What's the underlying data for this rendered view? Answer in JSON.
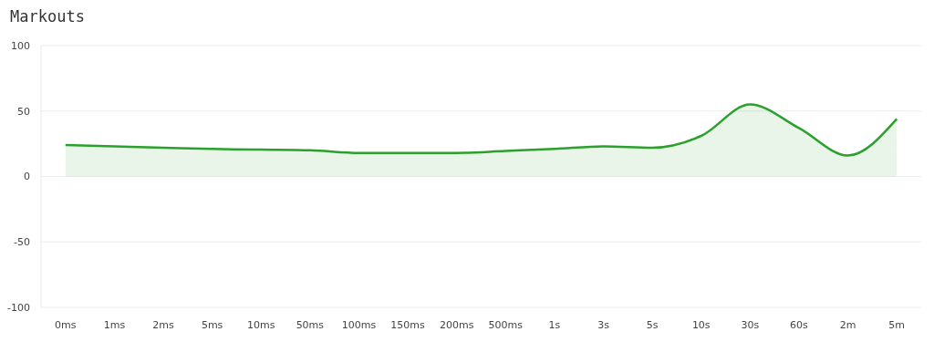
{
  "chart_data": {
    "type": "area",
    "title": "Markouts",
    "categories": [
      "0ms",
      "1ms",
      "2ms",
      "5ms",
      "10ms",
      "50ms",
      "100ms",
      "150ms",
      "200ms",
      "500ms",
      "1s",
      "3s",
      "5s",
      "10s",
      "30s",
      "60s",
      "2m",
      "5m"
    ],
    "series": [
      {
        "color": "#2ca02c",
        "values": [
          24,
          23,
          22,
          21,
          20.5,
          20,
          18,
          18,
          18,
          19.5,
          21,
          23,
          22,
          31,
          55,
          37,
          16,
          44
        ]
      }
    ],
    "ylim": [
      -100,
      100
    ],
    "yticks": [
      -100,
      -50,
      0,
      50,
      100
    ],
    "grid": "y"
  }
}
